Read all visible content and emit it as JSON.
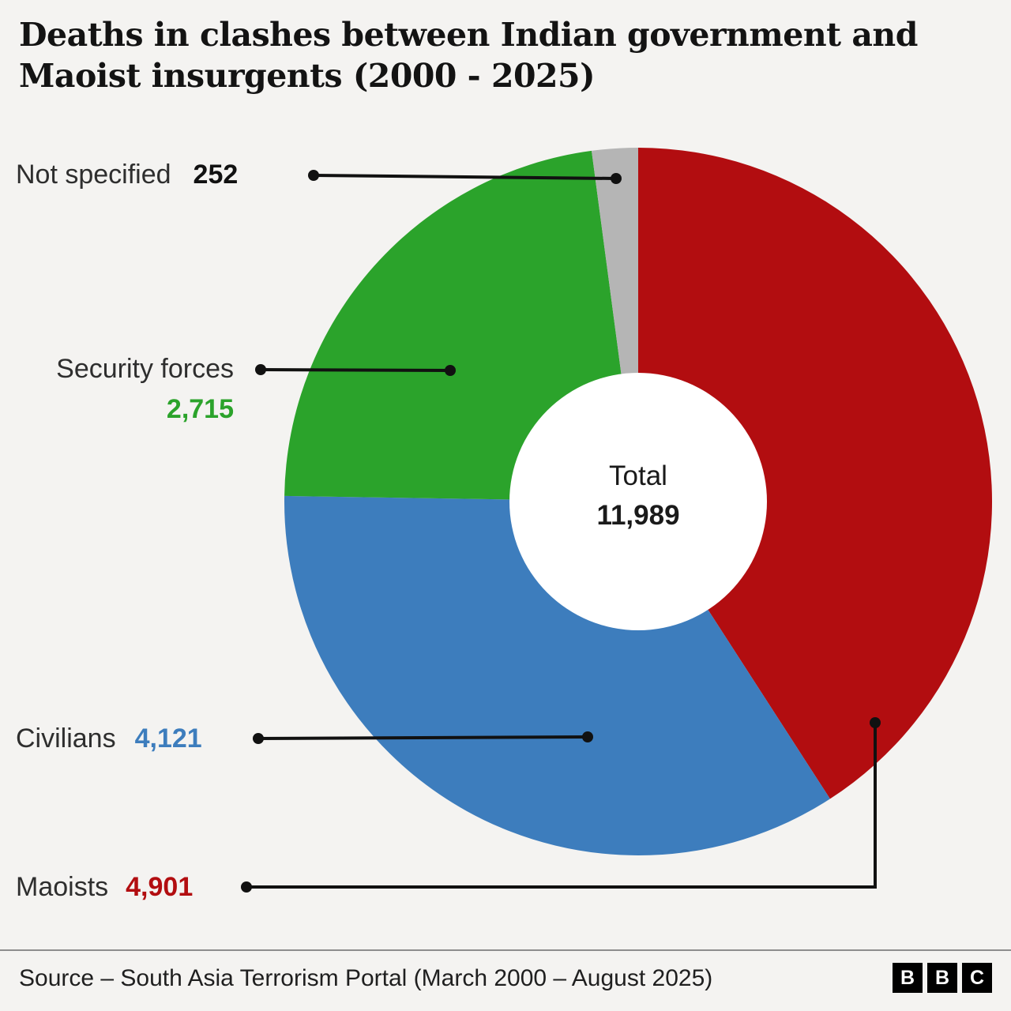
{
  "title": "Deaths in clashes between Indian government and Maoist insurgents (2000 - 2025)",
  "center_label": "Total",
  "chart_data": {
    "type": "pie",
    "donut": true,
    "title": "Deaths in clashes between Indian government and Maoist insurgents (2000 - 2025)",
    "total": 11989,
    "total_display": "11,989",
    "direction": "clockwise",
    "start_angle_deg": 0,
    "legend_position": "left-callouts",
    "segments": [
      {
        "label": "Maoists",
        "value": 4901,
        "display": "4,901",
        "color": "#b20d10"
      },
      {
        "label": "Civilians",
        "value": 4121,
        "display": "4,121",
        "color": "#3d7dbd"
      },
      {
        "label": "Security forces",
        "value": 2715,
        "display": "2,715",
        "color": "#2ba32b"
      },
      {
        "label": "Not specified",
        "value": 252,
        "display": "252",
        "color": "#b5b5b5"
      }
    ]
  },
  "colors": {
    "background": "#f4f3f1",
    "maoists_red": "#b20d10",
    "civilians_blue": "#3d7dbd",
    "security_green": "#2ba32b",
    "not_specified_grey": "#b5b5b5",
    "callout_line": "#111111"
  },
  "footer": {
    "source": "Source – South Asia Terrorism Portal (March 2000 – August 2025)",
    "logo_letters": [
      "B",
      "B",
      "C"
    ]
  }
}
